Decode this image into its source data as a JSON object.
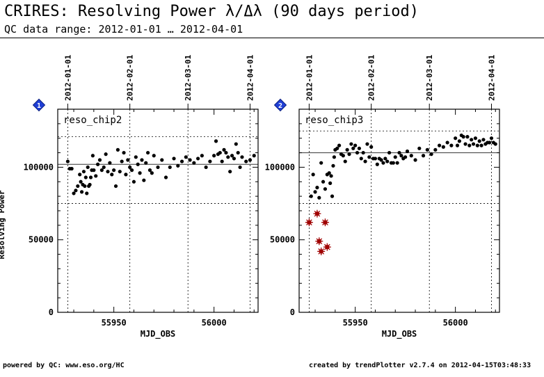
{
  "header": {
    "title": "CRIRES: Resolving Power λ/Δλ (90 days period)",
    "subtitle": "QC data range: 2012-01-01 … 2012-04-01"
  },
  "footer": {
    "left": "powered by QC: www.eso.org/HC",
    "right": "created by trendPlotter v2.7.4 on 2012-04-15T03:48:33"
  },
  "colors": {
    "points": "#000000",
    "outliers": "#a00000",
    "badge": "#1f3fd6"
  },
  "chart_data": [
    {
      "type": "scatter",
      "panel_label": "reso_chip2",
      "badge": "1",
      "xlabel": "MJD_OBS",
      "ylabel": "Resolving Power",
      "xlim": [
        55922,
        56022
      ],
      "ylim": [
        0,
        140000
      ],
      "grid": true,
      "x_ticks": [
        55950,
        56000
      ],
      "y_ticks": [
        0,
        50000,
        100000
      ],
      "date_ticks": [
        {
          "label": "2012-01-01",
          "x": 55927
        },
        {
          "label": "2012-02-01",
          "x": 55958
        },
        {
          "label": "2012-03-01",
          "x": 55987
        },
        {
          "label": "2012-04-01",
          "x": 56018
        }
      ],
      "reference_line": 102000,
      "threshold_lines": [
        75000,
        121000
      ],
      "points": {
        "x": [
          55927,
          55928,
          55929,
          55930,
          55931,
          55932,
          55933,
          55933.5,
          55934,
          55934.5,
          55935,
          55935.5,
          55936,
          55936.5,
          55937,
          55937.5,
          55938,
          55938.5,
          55939,
          55939.5,
          55940,
          55941,
          55942,
          55943,
          55944,
          55945,
          55946,
          55947,
          55948,
          55949,
          55950,
          55951,
          55952,
          55953,
          55954,
          55955,
          55956,
          55957,
          55958,
          55959,
          55960,
          55961,
          55962,
          55963,
          55964,
          55965,
          55966,
          55967,
          55968,
          55969,
          55970,
          55972,
          55974,
          55976,
          55978,
          55980,
          55982,
          55984,
          55986,
          55988,
          55990,
          55992,
          55994,
          55996,
          55998,
          56000,
          56001,
          56002,
          56003,
          56004,
          56005,
          56006,
          56007,
          56008,
          56009,
          56010,
          56011,
          56012,
          56013,
          56014,
          56016,
          56018,
          56020
        ],
        "y": [
          104000,
          99000,
          99000,
          82000,
          84000,
          87000,
          95000,
          90000,
          83000,
          88000,
          97000,
          87000,
          93000,
          82000,
          100000,
          87000,
          88000,
          93000,
          98000,
          108000,
          98000,
          94000,
          102000,
          105000,
          98000,
          100000,
          109000,
          97000,
          103000,
          95000,
          98000,
          87000,
          112000,
          97000,
          104000,
          110000,
          95000,
          105000,
          100000,
          98000,
          90000,
          107000,
          102000,
          96000,
          105000,
          91000,
          103000,
          110000,
          98000,
          96000,
          108000,
          100000,
          105000,
          93000,
          100000,
          106000,
          101000,
          104000,
          107000,
          105000,
          103000,
          106000,
          108000,
          100000,
          104000,
          108000,
          118000,
          109000,
          110000,
          104000,
          112000,
          110000,
          107000,
          97000,
          108000,
          106000,
          116000,
          110000,
          100000,
          107000,
          104000,
          105000,
          108000
        ]
      },
      "outliers": {
        "x": [],
        "y": []
      }
    },
    {
      "type": "scatter",
      "panel_label": "reso_chip3",
      "badge": "2",
      "xlabel": "MJD_OBS",
      "ylabel": "Resolving Power",
      "xlim": [
        55922,
        56022
      ],
      "ylim": [
        0,
        140000
      ],
      "grid": true,
      "x_ticks": [
        55950,
        56000
      ],
      "y_ticks": [
        0,
        50000,
        100000
      ],
      "date_ticks": [
        {
          "label": "2012-01-01",
          "x": 55927
        },
        {
          "label": "2012-02-01",
          "x": 55958
        },
        {
          "label": "2012-03-01",
          "x": 55987
        },
        {
          "label": "2012-04-01",
          "x": 56018
        }
      ],
      "reference_line": 110000,
      "threshold_lines": [
        75000,
        125000
      ],
      "points": {
        "x": [
          55928,
          55929,
          55930,
          55931,
          55932,
          55933,
          55934,
          55935,
          55936,
          55937,
          55937.5,
          55938,
          55938.5,
          55939,
          55939.5,
          55940,
          55941,
          55942,
          55943,
          55944,
          55945,
          55946,
          55947,
          55948,
          55949,
          55950,
          55951,
          55952,
          55953,
          55954,
          55955,
          55956,
          55957,
          55958,
          55959,
          55960,
          55961,
          55962,
          55963,
          55964,
          55965,
          55966,
          55967,
          55968,
          55969,
          55970,
          55971,
          55972,
          55973,
          55974,
          55975,
          55976,
          55978,
          55980,
          55982,
          55984,
          55986,
          55988,
          55990,
          55992,
          55994,
          55996,
          55998,
          56000,
          56001,
          56002,
          56003,
          56004,
          56005,
          56006,
          56007,
          56008,
          56009,
          56010,
          56011,
          56012,
          56013,
          56014,
          56015,
          56016,
          56017,
          56018,
          56019,
          56020
        ],
        "y": [
          80000,
          95000,
          83000,
          86000,
          79000,
          103000,
          90000,
          85000,
          95000,
          96000,
          89000,
          94000,
          80000,
          101000,
          107000,
          112000,
          113000,
          115000,
          109000,
          108000,
          104000,
          112000,
          109000,
          116000,
          113000,
          115000,
          110000,
          113000,
          106000,
          110000,
          104000,
          116000,
          107000,
          114000,
          106000,
          106000,
          102000,
          106000,
          105000,
          103000,
          106000,
          104000,
          110000,
          103000,
          103000,
          107000,
          103000,
          110000,
          108000,
          106000,
          107000,
          111000,
          108000,
          105000,
          113000,
          108000,
          112000,
          109000,
          112000,
          115000,
          114000,
          117000,
          115000,
          120000,
          115000,
          118000,
          122000,
          121000,
          116000,
          121000,
          115000,
          119000,
          116000,
          120000,
          115000,
          118000,
          115000,
          119000,
          116000,
          117000,
          117000,
          120000,
          117000,
          116000
        ],
        "y_note": ""
      },
      "outliers": {
        "x": [
          55927,
          55931,
          55932,
          55933,
          55935,
          55936
        ],
        "y": [
          62000,
          68000,
          49000,
          42000,
          62000,
          45000
        ]
      }
    }
  ]
}
